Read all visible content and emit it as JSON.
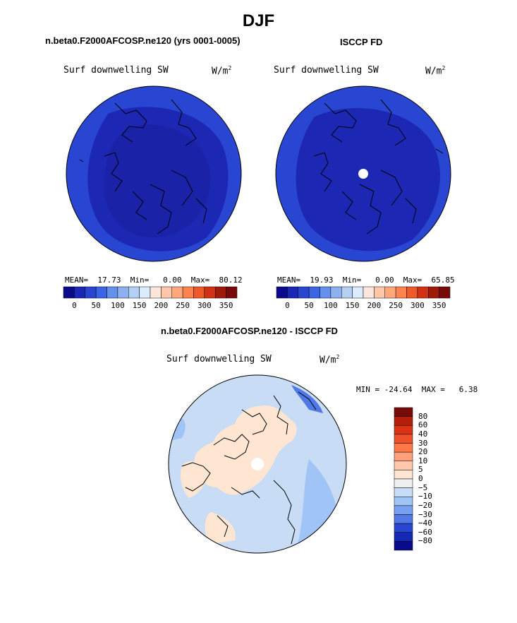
{
  "figure": {
    "season": "DJF",
    "diff_title": "n.beta0.F2000AFCOSP.ne120 - ISCCP FD"
  },
  "panels": [
    {
      "title": "n.beta0.F2000AFCOSP.ne120 (yrs 0001-0005)",
      "variable": "Surf downwelling SW",
      "units_main": "W/m",
      "units_sup": "2",
      "stats": "MEAN=  17.73  Min=   0.00  Max=  80.12",
      "has_pole_hole": false
    },
    {
      "title": "ISCCP FD",
      "variable": "Surf downwelling SW",
      "units_main": "W/m",
      "units_sup": "2",
      "stats": "MEAN=  19.93  Min=   0.00  Max=  65.85",
      "has_pole_hole": true
    }
  ],
  "diff_panel": {
    "variable": "Surf downwelling SW",
    "units_main": "W/m",
    "units_sup": "2",
    "minmax": "MIN = -24.64  MAX =   6.38"
  },
  "chart_data": [
    {
      "type": "heatmap",
      "projection": "north polar stereographic",
      "title": "n.beta0.F2000AFCOSP.ne120 (yrs 0001-0005)",
      "variable": "Surf downwelling SW",
      "units": "W/m2",
      "mean": 17.73,
      "min": 0.0,
      "max": 80.12,
      "colorbar_ticks": [
        "0",
        "50",
        "100",
        "150",
        "200",
        "250",
        "300",
        "350"
      ],
      "colorbar_colors": [
        "#0a0a8c",
        "#1c28b4",
        "#2846d2",
        "#3c64e6",
        "#6690ee",
        "#8cb0f0",
        "#b4d0f5",
        "#dcecff",
        "#ffe6dc",
        "#ffc8aa",
        "#ffa87c",
        "#ff8450",
        "#f05a28",
        "#d23214",
        "#a01a0a",
        "#780a0a"
      ],
      "regions": [
        {
          "zone": "arctic interior",
          "approx_value": 5
        },
        {
          "zone": "mid ring",
          "approx_value": 25
        },
        {
          "zone": "outer edge",
          "approx_value": 60
        }
      ]
    },
    {
      "type": "heatmap",
      "projection": "north polar stereographic",
      "title": "ISCCP FD",
      "variable": "Surf downwelling SW",
      "units": "W/m2",
      "mean": 19.93,
      "min": 0.0,
      "max": 65.85,
      "colorbar_ticks": [
        "0",
        "50",
        "100",
        "150",
        "200",
        "250",
        "300",
        "350"
      ],
      "colorbar_colors": [
        "#0a0a8c",
        "#1c28b4",
        "#2846d2",
        "#3c64e6",
        "#6690ee",
        "#8cb0f0",
        "#b4d0f5",
        "#dcecff",
        "#ffe6dc",
        "#ffc8aa",
        "#ffa87c",
        "#ff8450",
        "#f05a28",
        "#d23214",
        "#a01a0a",
        "#780a0a"
      ],
      "regions": [
        {
          "zone": "arctic interior",
          "approx_value": 5
        },
        {
          "zone": "mid ring",
          "approx_value": 25
        },
        {
          "zone": "outer edge",
          "approx_value": 55
        }
      ]
    },
    {
      "type": "heatmap",
      "projection": "north polar stereographic",
      "title": "n.beta0.F2000AFCOSP.ne120 - ISCCP FD",
      "variable": "Surf downwelling SW",
      "units": "W/m2",
      "min": -24.64,
      "max": 6.38,
      "colorbar_levels": [
        "80",
        "60",
        "40",
        "30",
        "20",
        "10",
        "5",
        "0",
        "-5",
        "-10",
        "-20",
        "-30",
        "-40",
        "-60",
        "-80"
      ],
      "colorbar_colors": [
        "#780a0a",
        "#b41e0a",
        "#dc3214",
        "#f05028",
        "#ff7846",
        "#ffa07a",
        "#ffc8aa",
        "#ffe6d2",
        "#f0f0f0",
        "#c8dcf5",
        "#a0c4f5",
        "#78a0f0",
        "#5078e6",
        "#2846d2",
        "#1428b4",
        "#0a0a8c"
      ],
      "regions": [
        {
          "zone": "land",
          "approx_value": 2
        },
        {
          "zone": "ocean",
          "approx_value": -3
        },
        {
          "zone": "north atlantic / pacific edges",
          "approx_value": -12
        }
      ]
    }
  ]
}
